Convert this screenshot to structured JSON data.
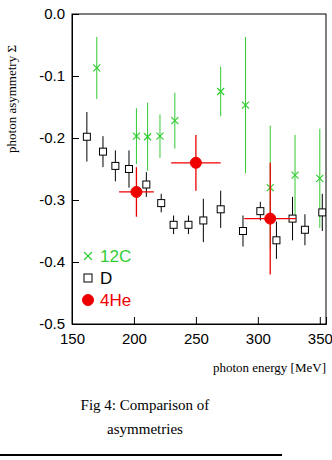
{
  "chart_data": {
    "type": "scatter",
    "title": [
      "Fig 4: Comparison of",
      "asymmetries"
    ],
    "x_label": "photon energy [MeV]",
    "y_label": "photon asymmetry Σ",
    "xlim": [
      150,
      355
    ],
    "ylim": [
      -0.5,
      0
    ],
    "xticks": [
      150,
      200,
      250,
      300,
      350
    ],
    "yticks": [
      {
        "value": 0,
        "label": "0.0"
      },
      -0.1,
      -0.2,
      -0.3,
      -0.4,
      -0.5
    ],
    "legend": "lower left",
    "grid": false,
    "series": [
      {
        "name": "12C",
        "color": "#33cc33",
        "marker": "x",
        "x": [
          170,
          202,
          211,
          221,
          233,
          270,
          290,
          310,
          330,
          350
        ],
        "values": [
          -0.087,
          -0.197,
          -0.198,
          -0.197,
          -0.172,
          -0.125,
          -0.147,
          -0.28,
          -0.26,
          -0.265
        ],
        "errors": [
          0.05,
          0.045,
          0.055,
          0.035,
          0.045,
          0.04,
          0.11,
          0.1,
          0.065,
          0.08
        ]
      },
      {
        "name": "D",
        "color": "#000000",
        "marker": "square",
        "x": [
          162,
          175,
          185,
          196,
          210,
          222,
          232,
          244,
          256,
          270,
          288,
          302,
          315,
          328,
          338,
          352
        ],
        "values": [
          -0.198,
          -0.222,
          -0.245,
          -0.25,
          -0.275,
          -0.305,
          -0.34,
          -0.34,
          -0.333,
          -0.315,
          -0.35,
          -0.318,
          -0.365,
          -0.33,
          -0.348,
          -0.32
        ],
        "errors": [
          0.04,
          0.025,
          0.025,
          0.03,
          0.02,
          0.015,
          0.015,
          0.015,
          0.035,
          0.03,
          0.025,
          0.015,
          0.03,
          0.035,
          0.025,
          0.03
        ]
      },
      {
        "name": "4He",
        "color": "#ee0000",
        "marker": "circle",
        "x": [
          202,
          250,
          310
        ],
        "values": [
          -0.287,
          -0.24,
          -0.33
        ],
        "errors": [
          0.04,
          0.045,
          0.09
        ],
        "x_errors": [
          14,
          20,
          21
        ]
      }
    ]
  }
}
